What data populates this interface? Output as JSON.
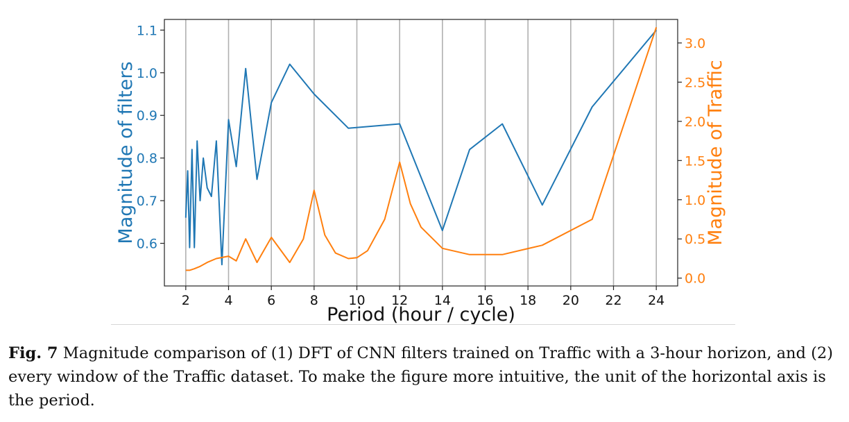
{
  "chart_data": {
    "type": "line",
    "xlabel": "Period (hour / cycle)",
    "xlim": [
      1,
      25
    ],
    "xticks": [
      2,
      4,
      6,
      8,
      10,
      12,
      14,
      16,
      18,
      20,
      22,
      24
    ],
    "grid": "vertical",
    "y_left": {
      "label": "Magnitude of filters",
      "ylim": [
        0.5,
        1.125
      ],
      "ticks": [
        0.6,
        0.7,
        0.8,
        0.9,
        1.0,
        1.1
      ],
      "color": "#1f77b4"
    },
    "y_right": {
      "label": "Magnitude of Traffic",
      "ylim": [
        -0.1,
        3.3
      ],
      "ticks": [
        0.0,
        0.5,
        1.0,
        1.5,
        2.0,
        2.5,
        3.0
      ],
      "color": "#ff7f0e"
    },
    "series": [
      {
        "axis": "left",
        "color": "#1f77b4",
        "x": [
          2.0,
          2.09,
          2.18,
          2.29,
          2.4,
          2.53,
          2.67,
          2.82,
          3.0,
          3.2,
          3.43,
          3.69,
          4.0,
          4.36,
          4.8,
          5.33,
          6.0,
          6.86,
          8.0,
          9.6,
          12.0,
          14.0,
          15.27,
          16.8,
          18.67,
          21.0,
          24.0
        ],
        "y": [
          0.66,
          0.77,
          0.59,
          0.82,
          0.59,
          0.84,
          0.7,
          0.8,
          0.73,
          0.71,
          0.84,
          0.55,
          0.89,
          0.78,
          1.01,
          0.75,
          0.93,
          1.02,
          0.95,
          0.87,
          0.88,
          0.63,
          0.82,
          0.88,
          0.69,
          0.92,
          1.1
        ]
      },
      {
        "axis": "right",
        "color": "#ff7f0e",
        "x": [
          2.0,
          2.18,
          2.4,
          2.67,
          3.0,
          3.43,
          4.0,
          4.36,
          4.8,
          5.33,
          6.0,
          6.86,
          7.5,
          8.0,
          8.5,
          9.0,
          9.6,
          10.0,
          10.5,
          11.3,
          12.0,
          12.5,
          13.0,
          14.0,
          15.27,
          16.8,
          18.67,
          21.0,
          24.0
        ],
        "y": [
          0.1,
          0.1,
          0.12,
          0.15,
          0.2,
          0.25,
          0.28,
          0.22,
          0.5,
          0.2,
          0.52,
          0.2,
          0.5,
          1.12,
          0.55,
          0.32,
          0.25,
          0.26,
          0.35,
          0.75,
          1.48,
          0.95,
          0.65,
          0.38,
          0.3,
          0.3,
          0.42,
          0.75,
          3.2
        ]
      }
    ]
  },
  "caption": {
    "label": "Fig. 7",
    "text": "Magnitude comparison of (1) DFT of CNN filters trained on Traffic with a 3-hour horizon, and (2) every window of the Traffic dataset. To make the figure more intuitive, the unit of the horizontal axis is the period."
  }
}
